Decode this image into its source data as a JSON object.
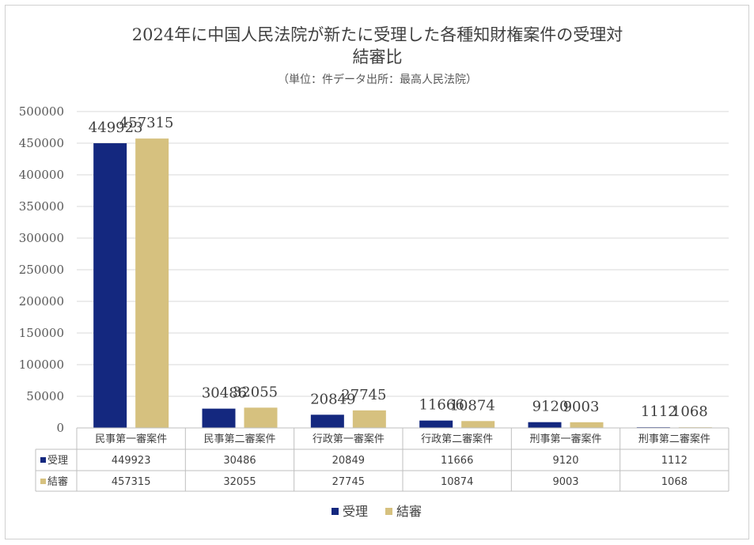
{
  "chart_data": {
    "type": "bar",
    "title": "2024年に中国人民法院が新たに受理した各種知財権案件の受理対",
    "title_line2": "結審比",
    "subtitle": "（単位：件データ出所：最高人民法院）",
    "categories": [
      "民事第一審案件",
      "民事第二審案件",
      "行政第一審案件",
      "行政第二審案件",
      "刑事第一審案件",
      "刑事第二審案件"
    ],
    "series": [
      {
        "name": "受理",
        "color": "#14287f",
        "values": [
          449923,
          30486,
          20849,
          11666,
          9120,
          1112
        ]
      },
      {
        "name": "結審",
        "color": "#d6c17f",
        "values": [
          457315,
          32055,
          27745,
          10874,
          9003,
          1068
        ]
      }
    ],
    "ylim": [
      0,
      500000
    ],
    "yticks": [
      0,
      50000,
      100000,
      150000,
      200000,
      250000,
      300000,
      350000,
      400000,
      450000,
      500000
    ],
    "grid": true,
    "legend_position": "bottom",
    "data_table": true
  }
}
